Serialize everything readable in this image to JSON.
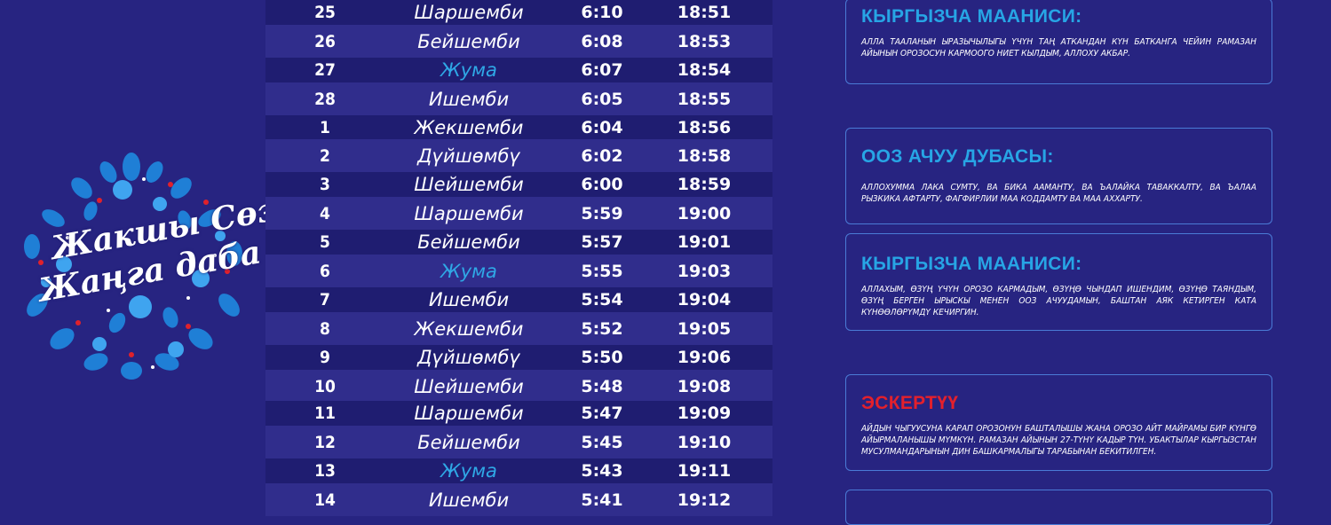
{
  "logo": {
    "line1": "Жакшы Сөз",
    "line2": "Жаңга даба"
  },
  "schedule": [
    {
      "num": "25",
      "day": "Шаршемби",
      "t1": "6:10",
      "t2": "18:51",
      "friday": false
    },
    {
      "num": "26",
      "day": "Бейшемби",
      "t1": "6:08",
      "t2": "18:53",
      "friday": false
    },
    {
      "num": "27",
      "day": "Жума",
      "t1": "6:07",
      "t2": "18:54",
      "friday": true
    },
    {
      "num": "28",
      "day": "Ишемби",
      "t1": "6:05",
      "t2": "18:55",
      "friday": false
    },
    {
      "num": "1",
      "day": "Жекшемби",
      "t1": "6:04",
      "t2": "18:56",
      "friday": false
    },
    {
      "num": "2",
      "day": "Дүйшөмбү",
      "t1": "6:02",
      "t2": "18:58",
      "friday": false
    },
    {
      "num": "3",
      "day": "Шейшемби",
      "t1": "6:00",
      "t2": "18:59",
      "friday": false
    },
    {
      "num": "4",
      "day": "Шаршемби",
      "t1": "5:59",
      "t2": "19:00",
      "friday": false
    },
    {
      "num": "5",
      "day": "Бейшемби",
      "t1": "5:57",
      "t2": "19:01",
      "friday": false
    },
    {
      "num": "6",
      "day": "Жума",
      "t1": "5:55",
      "t2": "19:03",
      "friday": true
    },
    {
      "num": "7",
      "day": "Ишемби",
      "t1": "5:54",
      "t2": "19:04",
      "friday": false
    },
    {
      "num": "8",
      "day": "Жекшемби",
      "t1": "5:52",
      "t2": "19:05",
      "friday": false
    },
    {
      "num": "9",
      "day": "Дүйшөмбү",
      "t1": "5:50",
      "t2": "19:06",
      "friday": false
    },
    {
      "num": "10",
      "day": "Шейшемби",
      "t1": "5:48",
      "t2": "19:08",
      "friday": false
    },
    {
      "num": "11",
      "day": "Шаршемби",
      "t1": "5:47",
      "t2": "19:09",
      "friday": false
    },
    {
      "num": "12",
      "day": "Бейшемби",
      "t1": "5:45",
      "t2": "19:10",
      "friday": false
    },
    {
      "num": "13",
      "day": "Жума",
      "t1": "5:43",
      "t2": "19:11",
      "friday": true
    },
    {
      "num": "14",
      "day": "Ишемби",
      "t1": "5:41",
      "t2": "19:12",
      "friday": false
    }
  ],
  "boxes": {
    "meaning1": {
      "title": "КЫРГЫЗЧА МААНИСИ:",
      "text": "АЛЛА ТААЛАНЫН ЫРАЗЫЧЫЛЫГЫ ҮЧҮН ТАҢ АТКАНДАН КҮН БАТКАНГА ЧЕЙИН РАМАЗАН АЙЫНЫН ОРОЗОСУН КАРМООГО НИЕТ КЫЛДЫМ, АЛЛОХУ АКБАР."
    },
    "dua": {
      "title": "ООЗ  АЧУУ ДУБАСЫ:",
      "text": "АЛЛОХУММА ЛАКА СУМТУ, ВА БИКА ААМАНТУ, ВА ЪАЛАЙКА ТАВАККАЛТУ, ВА ЪАЛАА РЫЗКИКА АФТАРТУ, ФАГФИРЛИИ МАА КОДДАМТУ ВА МАА АХХАРТУ."
    },
    "meaning2": {
      "title": "КЫРГЫЗЧА МААНИСИ:",
      "text": "АЛЛАХЫМ, ӨЗҮҢ ҮЧҮН ОРОЗО КАРМАДЫМ, ӨЗҮҢӨ ЧЫНДАП ИШЕНДИМ, ӨЗҮҢӨ ТАЯНДЫМ, ӨЗҮҢ БЕРГЕН ЫРЫСКЫ МЕНЕН ООЗ АЧУУДАМЫН, БАШТАН АЯК КЕТИРГЕН КАТА КҮНӨӨЛӨРҮМДҮ КЕЧИРГИН."
    },
    "note": {
      "title": "ЭСКЕРТҮҮ",
      "text": "АЙДЫН ЧЫГУУСУНА КАРАП ОРОЗОНУН БАШТАЛЫШЫ ЖАНА ОРОЗО АЙТ МАЙРАМЫ БИР КҮНГӨ АЙЫРМАЛАНЫШЫ МҮМКҮН. РАМАЗАН АЙЫНЫН 27-ТҮНҮ КАДЫР ТҮН. УБАКТЫЛАР КЫРГЫЗСТАН МУСУЛМАНДАРЫНЫН ДИН БАШКАРМАЛЫГЫ ТАРАБЫНАН БЕКИТИЛГЕН."
    }
  }
}
